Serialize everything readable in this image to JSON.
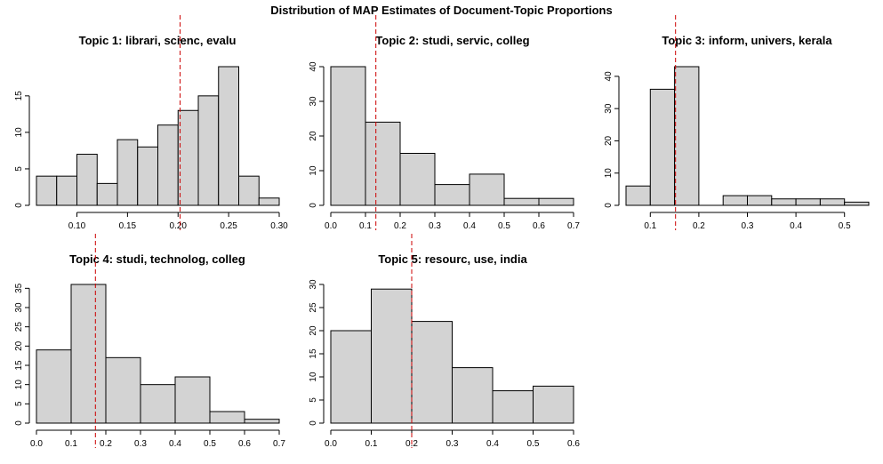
{
  "title": "Distribution of MAP Estimates of Document-Topic Proportions",
  "colors": {
    "bar_fill": "#d3d3d3",
    "bar_stroke": "#000000",
    "reference_line": "#cc0000"
  },
  "chart_data": [
    {
      "type": "bar",
      "title": "Topic 1: librari, scienc, evalu",
      "bin_edges": [
        0.06,
        0.08,
        0.1,
        0.12,
        0.14,
        0.16,
        0.18,
        0.2,
        0.22,
        0.24,
        0.26,
        0.28,
        0.3
      ],
      "values": [
        4,
        4,
        7,
        3,
        9,
        8,
        11,
        13,
        15,
        19,
        4,
        1
      ],
      "reference_line": 0.202,
      "xlim": [
        0.06,
        0.3
      ],
      "ylim": [
        0,
        19
      ],
      "x_ticks": [
        0.1,
        0.15,
        0.2,
        0.25,
        0.3
      ],
      "x_tick_labels": [
        "0.10",
        "0.15",
        "0.20",
        "0.25",
        "0.30"
      ],
      "y_ticks": [
        0,
        5,
        10,
        15
      ],
      "y_tick_labels": [
        "0",
        "5",
        "10",
        "15"
      ],
      "xlabel": "",
      "ylabel": "",
      "grid": false,
      "legend": "none"
    },
    {
      "type": "bar",
      "title": "Topic 2: studi, servic, colleg",
      "bin_edges": [
        0.0,
        0.1,
        0.2,
        0.3,
        0.4,
        0.5,
        0.6,
        0.7
      ],
      "values": [
        40,
        24,
        15,
        6,
        9,
        2,
        2
      ],
      "reference_line": 0.13,
      "xlim": [
        0.0,
        0.7
      ],
      "ylim": [
        0,
        40
      ],
      "x_ticks": [
        0.0,
        0.1,
        0.2,
        0.3,
        0.4,
        0.5,
        0.6,
        0.7
      ],
      "x_tick_labels": [
        "0.0",
        "0.1",
        "0.2",
        "0.3",
        "0.4",
        "0.5",
        "0.6",
        "0.7"
      ],
      "y_ticks": [
        0,
        10,
        20,
        30,
        40
      ],
      "y_tick_labels": [
        "0",
        "10",
        "20",
        "30",
        "40"
      ],
      "xlabel": "",
      "ylabel": "",
      "grid": false,
      "legend": "none"
    },
    {
      "type": "bar",
      "title": "Topic 3: inform, univers, kerala",
      "bin_edges": [
        0.05,
        0.1,
        0.15,
        0.2,
        0.25,
        0.3,
        0.35,
        0.4,
        0.45,
        0.5,
        0.55
      ],
      "values": [
        6,
        36,
        43,
        0,
        3,
        3,
        2,
        2,
        2,
        1
      ],
      "reference_line": 0.152,
      "xlim": [
        0.05,
        0.55
      ],
      "ylim": [
        0,
        43
      ],
      "x_ticks": [
        0.1,
        0.2,
        0.3,
        0.4,
        0.5
      ],
      "x_tick_labels": [
        "0.1",
        "0.2",
        "0.3",
        "0.4",
        "0.5"
      ],
      "y_ticks": [
        0,
        10,
        20,
        30,
        40
      ],
      "y_tick_labels": [
        "0",
        "10",
        "20",
        "30",
        "40"
      ],
      "xlabel": "",
      "ylabel": "",
      "grid": false,
      "legend": "none"
    },
    {
      "type": "bar",
      "title": "Topic 4: studi, technolog, colleg",
      "bin_edges": [
        0.0,
        0.1,
        0.2,
        0.3,
        0.4,
        0.5,
        0.6,
        0.7
      ],
      "values": [
        19,
        36,
        17,
        10,
        12,
        3,
        1
      ],
      "reference_line": 0.17,
      "xlim": [
        0.0,
        0.7
      ],
      "ylim": [
        0,
        36
      ],
      "x_ticks": [
        0.0,
        0.1,
        0.2,
        0.3,
        0.4,
        0.5,
        0.6,
        0.7
      ],
      "x_tick_labels": [
        "0.0",
        "0.1",
        "0.2",
        "0.3",
        "0.4",
        "0.5",
        "0.6",
        "0.7"
      ],
      "y_ticks": [
        0,
        5,
        10,
        15,
        20,
        25,
        30,
        35
      ],
      "y_tick_labels": [
        "0",
        "5",
        "10",
        "15",
        "20",
        "25",
        "30",
        "35"
      ],
      "xlabel": "",
      "ylabel": "",
      "grid": false,
      "legend": "none"
    },
    {
      "type": "bar",
      "title": "Topic 5: resourc, use, india",
      "bin_edges": [
        0.0,
        0.1,
        0.2,
        0.3,
        0.4,
        0.5,
        0.6
      ],
      "values": [
        20,
        29,
        22,
        12,
        7,
        8
      ],
      "reference_line": 0.2,
      "xlim": [
        0.0,
        0.6
      ],
      "ylim": [
        0,
        30
      ],
      "x_ticks": [
        0.0,
        0.1,
        0.2,
        0.3,
        0.4,
        0.5,
        0.6
      ],
      "x_tick_labels": [
        "0.0",
        "0.1",
        "0.2",
        "0.3",
        "0.4",
        "0.5",
        "0.6"
      ],
      "y_ticks": [
        0,
        5,
        10,
        15,
        20,
        25,
        30
      ],
      "y_tick_labels": [
        "0",
        "5",
        "10",
        "15",
        "20",
        "25",
        "30"
      ],
      "xlabel": "",
      "ylabel": "",
      "grid": false,
      "legend": "none"
    }
  ]
}
